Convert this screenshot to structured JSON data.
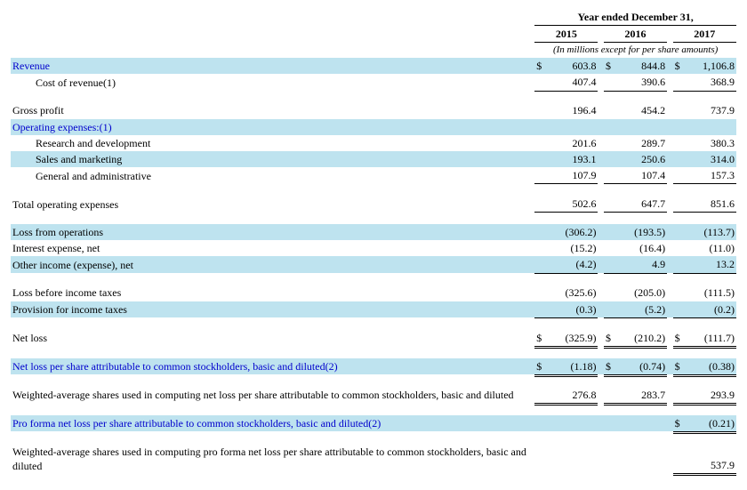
{
  "header": {
    "spanning": "Year ended December 31,",
    "years": [
      "2015",
      "2016",
      "2017"
    ],
    "subnote": "(In millions except for per share amounts)"
  },
  "rows": [
    {
      "key": "revenue",
      "label": "Revenue",
      "link": true,
      "shade": true,
      "indent": 0,
      "sym": "$",
      "vals": [
        "603.8",
        "844.8",
        "1,106.8"
      ],
      "underline": ""
    },
    {
      "key": "cost_of_revenue",
      "label": "Cost of revenue(1)",
      "link": false,
      "shade": false,
      "indent": 1,
      "sym": "",
      "vals": [
        "407.4",
        "390.6",
        "368.9"
      ],
      "underline": "u1"
    },
    {
      "key": "spacer1",
      "label": "",
      "spacer": true
    },
    {
      "key": "gross_profit",
      "label": "Gross profit",
      "link": false,
      "shade": false,
      "indent": 0,
      "sym": "",
      "vals": [
        "196.4",
        "454.2",
        "737.9"
      ],
      "underline": ""
    },
    {
      "key": "opex_hdr",
      "label": "Operating expenses:(1)",
      "link": true,
      "shade": true,
      "indent": 0,
      "header_only": true
    },
    {
      "key": "rnd",
      "label": "Research and development",
      "link": false,
      "shade": false,
      "indent": 1,
      "sym": "",
      "vals": [
        "201.6",
        "289.7",
        "380.3"
      ],
      "underline": ""
    },
    {
      "key": "sales_mkt",
      "label": "Sales and marketing",
      "link": false,
      "shade": true,
      "indent": 1,
      "sym": "",
      "vals": [
        "193.1",
        "250.6",
        "314.0"
      ],
      "underline": ""
    },
    {
      "key": "gna",
      "label": "General and administrative",
      "link": false,
      "shade": false,
      "indent": 1,
      "sym": "",
      "vals": [
        "107.9",
        "107.4",
        "157.3"
      ],
      "underline": "u1"
    },
    {
      "key": "spacer2",
      "label": "",
      "spacer": true
    },
    {
      "key": "total_opex",
      "label": "Total operating expenses",
      "link": false,
      "shade": false,
      "indent": 0,
      "sym": "",
      "vals": [
        "502.6",
        "647.7",
        "851.6"
      ],
      "underline": "u1"
    },
    {
      "key": "spacer3",
      "label": "",
      "spacer": true
    },
    {
      "key": "loss_ops",
      "label": "Loss from operations",
      "link": false,
      "shade": true,
      "indent": 0,
      "sym": "",
      "vals": [
        "(306.2)",
        "(193.5)",
        "(113.7)"
      ],
      "underline": ""
    },
    {
      "key": "int_exp",
      "label": "Interest expense, net",
      "link": false,
      "shade": false,
      "indent": 0,
      "sym": "",
      "vals": [
        "(15.2)",
        "(16.4)",
        "(11.0)"
      ],
      "underline": ""
    },
    {
      "key": "other_inc",
      "label": "Other income (expense), net",
      "link": false,
      "shade": true,
      "indent": 0,
      "sym": "",
      "vals": [
        "(4.2)",
        "4.9",
        "13.2"
      ],
      "underline": "u1"
    },
    {
      "key": "spacer4",
      "label": "",
      "spacer": true
    },
    {
      "key": "loss_before_tax",
      "label": "Loss before income taxes",
      "link": false,
      "shade": false,
      "indent": 0,
      "sym": "",
      "vals": [
        "(325.6)",
        "(205.0)",
        "(111.5)"
      ],
      "underline": ""
    },
    {
      "key": "prov_tax",
      "label": "Provision for income taxes",
      "link": false,
      "shade": true,
      "indent": 0,
      "sym": "",
      "vals": [
        "(0.3)",
        "(5.2)",
        "(0.2)"
      ],
      "underline": "u1"
    },
    {
      "key": "spacer5",
      "label": "",
      "spacer": true
    },
    {
      "key": "net_loss",
      "label": "Net loss",
      "link": false,
      "shade": false,
      "indent": 0,
      "sym": "$",
      "vals": [
        "(325.9)",
        "(210.2)",
        "(111.7)"
      ],
      "underline": "u2"
    },
    {
      "key": "spacer6",
      "label": "",
      "spacer": true
    },
    {
      "key": "nlps",
      "label": "Net loss per share attributable to common stockholders, basic and diluted(2)",
      "link": true,
      "shade": true,
      "indent": 0,
      "sym": "$",
      "vals": [
        "(1.18)",
        "(0.74)",
        "(0.38)"
      ],
      "underline": "u2"
    },
    {
      "key": "spacer7",
      "label": "",
      "spacer": true
    },
    {
      "key": "wavg_shares",
      "label": "Weighted-average shares used in computing net loss per share attributable to common stockholders, basic and diluted",
      "link": false,
      "shade": false,
      "indent": 0,
      "sym": "",
      "vals": [
        "276.8",
        "283.7",
        "293.9"
      ],
      "underline": "u2"
    },
    {
      "key": "spacer8",
      "label": "",
      "spacer": true
    },
    {
      "key": "pf_nlps",
      "label": "Pro forma net loss per share attributable to common stockholders, basic and diluted(2)",
      "link": true,
      "shade": true,
      "indent": 0,
      "sym": "$",
      "vals": [
        "",
        "",
        "(0.21)"
      ],
      "underline": "u2",
      "only_last": true
    },
    {
      "key": "spacer9",
      "label": "",
      "spacer": true
    },
    {
      "key": "pf_wavg",
      "label": "Weighted-average shares used in computing pro forma net loss per share attributable to common stockholders, basic and diluted",
      "link": false,
      "shade": false,
      "indent": 0,
      "sym": "",
      "vals": [
        "",
        "",
        "537.9"
      ],
      "underline": "u2",
      "only_last": true
    }
  ],
  "colors": {
    "link": "#0000cc",
    "shade": "#bee3ef"
  }
}
